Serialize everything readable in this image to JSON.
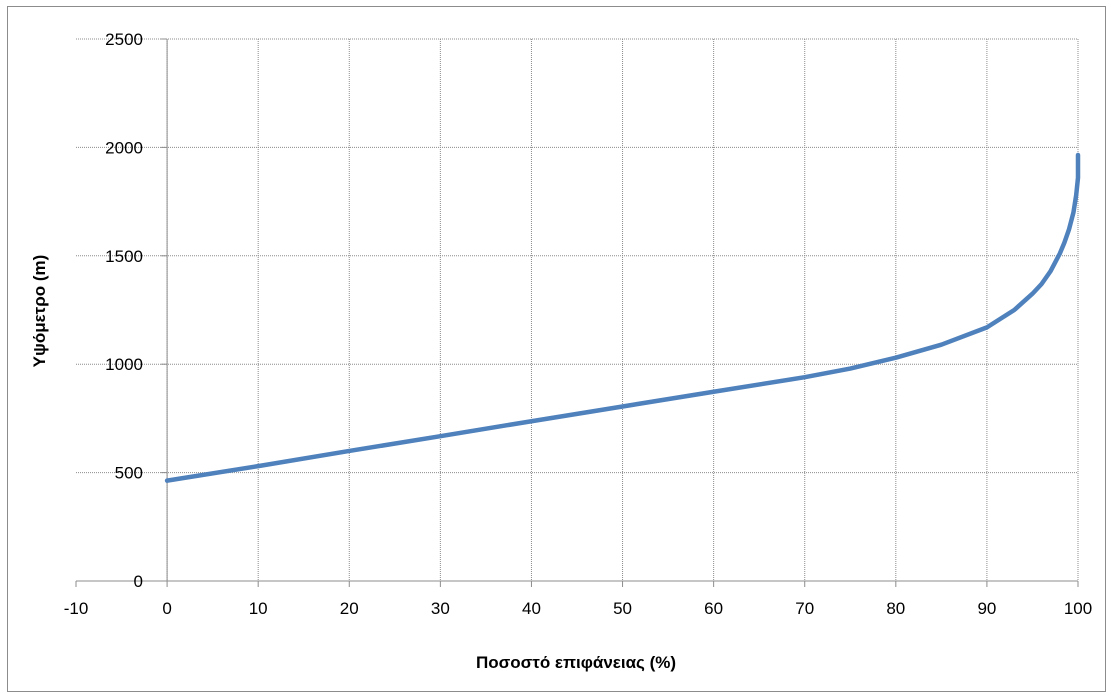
{
  "chart_data": {
    "type": "line",
    "title": "",
    "xlabel": "Ποσοστό επιφάνειας (%)",
    "ylabel": "Υψόμετρο (m)",
    "xlim": [
      -10,
      100
    ],
    "ylim": [
      0,
      2500
    ],
    "xticks": [
      "-10",
      "0",
      "10",
      "20",
      "30",
      "40",
      "50",
      "60",
      "70",
      "80",
      "90",
      "100"
    ],
    "yticks": [
      "0",
      "500",
      "1000",
      "1500",
      "2000",
      "2500"
    ],
    "grid": true,
    "legend": "none",
    "series": [
      {
        "color": "#4f81bd",
        "x": [
          0,
          10,
          20,
          30,
          40,
          50,
          60,
          70,
          75,
          80,
          85,
          90,
          93,
          95,
          96,
          97,
          98,
          98.5,
          99,
          99.5,
          99.8,
          100,
          100
        ],
        "y": [
          463,
          530,
          600,
          668,
          737,
          805,
          873,
          940,
          980,
          1030,
          1090,
          1170,
          1250,
          1325,
          1370,
          1430,
          1510,
          1560,
          1620,
          1700,
          1780,
          1860,
          1965
        ]
      }
    ]
  }
}
